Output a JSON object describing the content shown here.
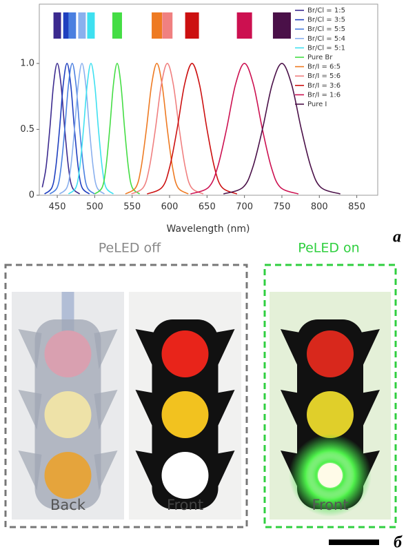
{
  "chart_data": {
    "type": "line",
    "xlabel": "Wavelength (nm)",
    "xlim": [
      426,
      878
    ],
    "xticks": [
      450,
      500,
      550,
      600,
      650,
      700,
      750,
      800,
      850
    ],
    "ylim": [
      0,
      1.45
    ],
    "yticks": [
      0,
      0.5,
      {
        "value": 1,
        "label": "1.0"
      }
    ],
    "legend": "upper right",
    "series": [
      {
        "name": "Br/Cl = 1:5",
        "color": "#3b2a8f",
        "x": [
          430,
          435,
          440,
          445,
          450,
          455,
          460,
          465,
          470,
          480
        ],
        "values": [
          0.06,
          0.21,
          0.5,
          0.84,
          1,
          0.84,
          0.5,
          0.21,
          0.06,
          0.01
        ]
      },
      {
        "name": "Br/Cl = 3:5",
        "color": "#1f3fbf",
        "x": [
          433,
          443,
          448,
          453,
          458,
          463,
          468,
          473,
          478,
          483,
          493
        ],
        "values": [
          0.01,
          0.06,
          0.21,
          0.5,
          0.84,
          1,
          0.84,
          0.5,
          0.21,
          0.06,
          0.01
        ]
      },
      {
        "name": "Br/Cl = 5:5",
        "color": "#4a7fe0",
        "x": [
          440,
          450,
          455,
          460,
          465,
          470,
          475,
          480,
          485,
          490,
          500
        ],
        "values": [
          0.01,
          0.06,
          0.21,
          0.5,
          0.84,
          1,
          0.84,
          0.5,
          0.21,
          0.06,
          0.01
        ]
      },
      {
        "name": "Br/Cl = 5:4",
        "color": "#8ab0ee",
        "x": [
          453,
          463,
          468,
          473,
          478,
          483,
          488,
          493,
          498,
          503,
          513
        ],
        "values": [
          0.01,
          0.06,
          0.21,
          0.5,
          0.84,
          1,
          0.84,
          0.5,
          0.21,
          0.06,
          0.01
        ]
      },
      {
        "name": "Br/Cl = 5:1",
        "color": "#3ee0f0",
        "x": [
          465,
          475,
          480,
          485,
          490,
          495,
          500,
          505,
          510,
          515,
          525
        ],
        "values": [
          0.01,
          0.06,
          0.21,
          0.5,
          0.84,
          1,
          0.84,
          0.5,
          0.21,
          0.06,
          0.01
        ]
      },
      {
        "name": "Pure Br",
        "color": "#44dd44",
        "x": [
          500,
          510,
          515,
          520,
          525,
          530,
          535,
          540,
          545,
          550,
          560
        ],
        "values": [
          0.01,
          0.06,
          0.21,
          0.5,
          0.84,
          1,
          0.84,
          0.5,
          0.21,
          0.06,
          0.01
        ]
      },
      {
        "name": "Br/I = 6:5",
        "color": "#ee7a22",
        "x": [
          541,
          555,
          562,
          569,
          576,
          583,
          590,
          597,
          604,
          611,
          625
        ],
        "values": [
          0.01,
          0.06,
          0.21,
          0.5,
          0.84,
          1,
          0.84,
          0.5,
          0.21,
          0.06,
          0.01
        ]
      },
      {
        "name": "Br/I = 5:6",
        "color": "#f08080",
        "x": [
          549,
          565,
          573,
          581,
          589,
          597,
          605,
          613,
          621,
          629,
          645
        ],
        "values": [
          0.01,
          0.06,
          0.21,
          0.5,
          0.84,
          1,
          0.84,
          0.5,
          0.21,
          0.06,
          0.01
        ]
      },
      {
        "name": "Br/I = 3:6",
        "color": "#cc1010",
        "x": [
          570,
          590,
          600,
          610,
          620,
          630,
          640,
          650,
          660,
          670,
          690
        ],
        "values": [
          0.01,
          0.06,
          0.21,
          0.5,
          0.84,
          1,
          0.84,
          0.5,
          0.21,
          0.06,
          0.01
        ]
      },
      {
        "name": "Br/I = 1:6",
        "color": "#cc1050",
        "x": [
          628,
          652,
          664,
          676,
          688,
          700,
          712,
          724,
          736,
          748,
          772
        ],
        "values": [
          0.01,
          0.06,
          0.21,
          0.5,
          0.84,
          1,
          0.84,
          0.5,
          0.21,
          0.06,
          0.01
        ]
      },
      {
        "name": "Pure I",
        "color": "#4a1048",
        "x": [
          672,
          698,
          711,
          724,
          737,
          750,
          763,
          776,
          789,
          802,
          828
        ],
        "values": [
          0.01,
          0.06,
          0.21,
          0.5,
          0.84,
          1,
          0.84,
          0.5,
          0.21,
          0.06,
          0.01
        ]
      }
    ]
  },
  "figure": {
    "panel_a_label": "a",
    "panel_b_label": "б",
    "off": {
      "title": "PeLED off",
      "photos": [
        "Back",
        "Front"
      ]
    },
    "on": {
      "title": "PeLED on",
      "photos": [
        "Front"
      ]
    }
  }
}
